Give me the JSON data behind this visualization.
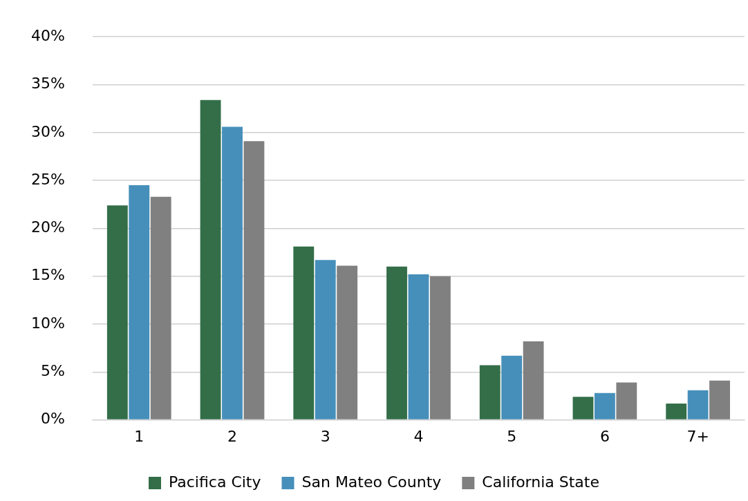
{
  "chart_data": {
    "type": "bar",
    "categories": [
      "1",
      "2",
      "3",
      "4",
      "5",
      "6",
      "7+"
    ],
    "series": [
      {
        "name": "Pacifica City",
        "color": "#336e48",
        "values": [
          22.4,
          33.4,
          18.1,
          16.0,
          5.7,
          2.4,
          1.7
        ]
      },
      {
        "name": "San Mateo County",
        "color": "#468fba",
        "values": [
          24.5,
          30.6,
          16.7,
          15.2,
          6.7,
          2.8,
          3.1
        ]
      },
      {
        "name": "California State",
        "color": "#808080",
        "values": [
          23.3,
          29.1,
          16.1,
          15.0,
          8.2,
          3.9,
          4.1
        ]
      }
    ],
    "ylim": [
      0,
      40
    ],
    "yticks": [
      {
        "value": 0,
        "label": "0%"
      },
      {
        "value": 5,
        "label": "5%"
      },
      {
        "value": 10,
        "label": "10%"
      },
      {
        "value": 15,
        "label": "15%"
      },
      {
        "value": 20,
        "label": "20%"
      },
      {
        "value": 25,
        "label": "25%"
      },
      {
        "value": 30,
        "label": "30%"
      },
      {
        "value": 35,
        "label": "35%"
      },
      {
        "value": 40,
        "label": "40%"
      }
    ],
    "grid": "y",
    "legend": "bottom"
  }
}
